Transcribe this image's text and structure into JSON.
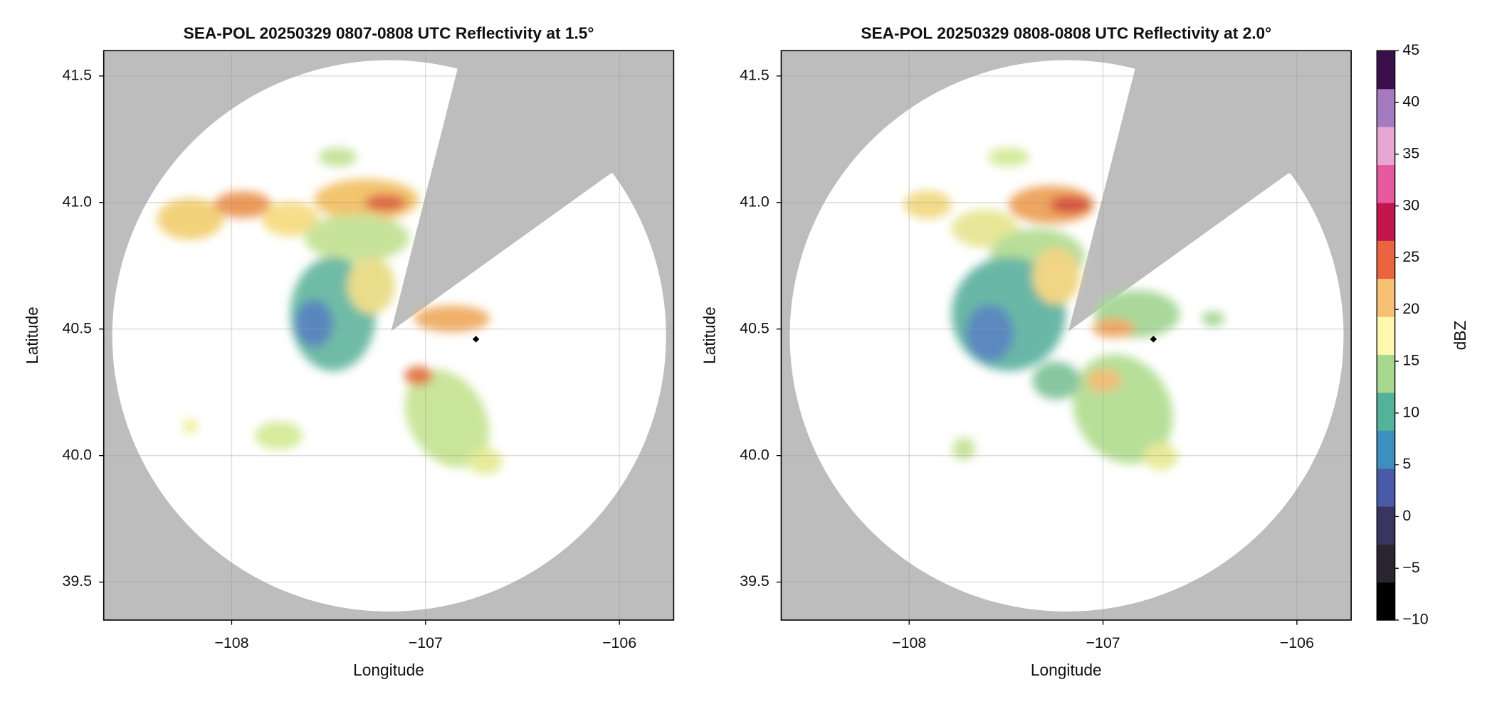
{
  "chart_data": [
    {
      "type": "map",
      "title": "SEA-POL 20250329 0807-0808 UTC Reflectivity at 1.5°",
      "xlabel": "Longitude",
      "ylabel": "Latitude",
      "xlim": [
        -108.66,
        -105.72
      ],
      "ylim": [
        39.35,
        41.6
      ],
      "xticks": [
        {
          "value": -108,
          "label": "−108"
        },
        {
          "value": -107,
          "label": "−107"
        },
        {
          "value": -106,
          "label": "−106"
        }
      ],
      "yticks": [
        {
          "value": 39.5,
          "label": "39.5"
        },
        {
          "value": 40,
          "label": "40.0"
        },
        {
          "value": 40.5,
          "label": "40.5"
        },
        {
          "value": 41,
          "label": "41.0"
        },
        {
          "value": 41.5,
          "label": "41.5"
        }
      ],
      "grid": true,
      "marker": {
        "x": -106.74,
        "y": 40.46,
        "color": "#000000"
      }
    },
    {
      "type": "map",
      "title": "SEA-POL 20250329 0808-0808 UTC Reflectivity at 2.0°",
      "xlabel": "Longitude",
      "ylabel": "Latitude",
      "xlim": [
        -108.66,
        -105.72
      ],
      "ylim": [
        39.35,
        41.6
      ],
      "xticks": [
        {
          "value": -108,
          "label": "−108"
        },
        {
          "value": -107,
          "label": "−107"
        },
        {
          "value": -106,
          "label": "−106"
        }
      ],
      "yticks": [
        {
          "value": 39.5,
          "label": "39.5"
        },
        {
          "value": 40,
          "label": "40.0"
        },
        {
          "value": 40.5,
          "label": "40.5"
        },
        {
          "value": 41,
          "label": "41.0"
        },
        {
          "value": 41.5,
          "label": "41.5"
        }
      ],
      "grid": true,
      "marker": {
        "x": -106.74,
        "y": 40.46,
        "color": "#000000"
      },
      "colorbar": {
        "label": "dBZ",
        "lim": [
          -10,
          45
        ],
        "ticks": [
          {
            "value": -10,
            "label": "−10"
          },
          {
            "value": -5,
            "label": "−5"
          },
          0,
          5,
          10,
          15,
          20,
          25,
          30,
          35,
          40,
          {
            "value": 45,
            "label": "45"
          }
        ],
        "colors": [
          "#000000",
          "#2a2530",
          "#3a3560",
          "#4a5aa8",
          "#3d8fc0",
          "#52b29a",
          "#a6d98e",
          "#fdf7b0",
          "#f8c073",
          "#e9643f",
          "#c3164d",
          "#e75aa0",
          "#e8a6d4",
          "#a57bc0",
          "#3b0f4a"
        ]
      }
    }
  ]
}
